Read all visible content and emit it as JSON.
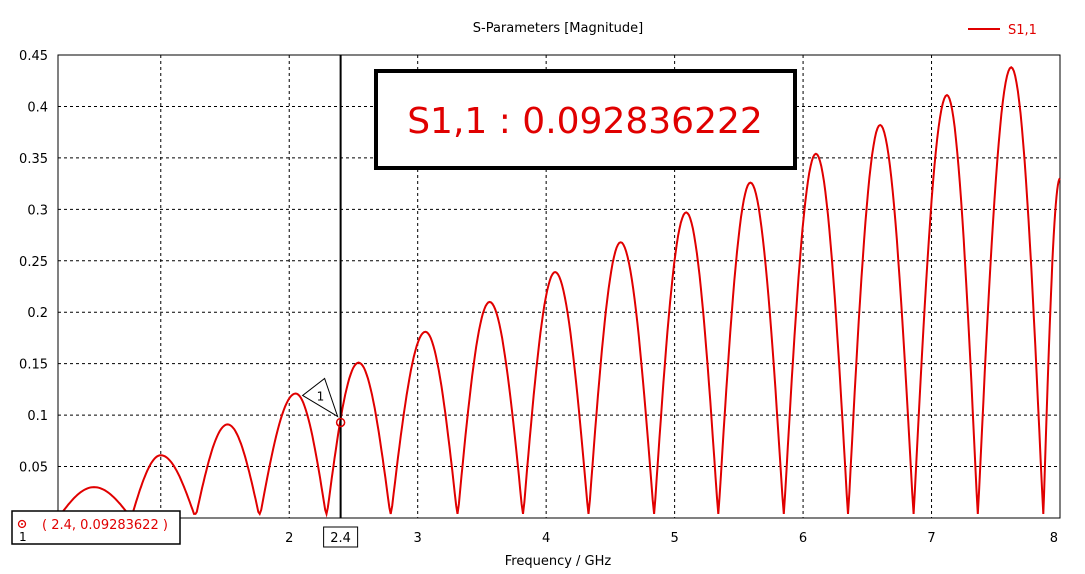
{
  "chart_data": {
    "type": "line",
    "title": "S-Parameters [Magnitude]",
    "xlabel": "Frequency / GHz",
    "ylabel": "",
    "xlim": [
      0.2,
      8
    ],
    "ylim": [
      0,
      0.45
    ],
    "x_ticks": [
      1,
      2,
      3,
      4,
      5,
      6,
      7,
      8
    ],
    "y_ticks": [
      0.05,
      0.1,
      0.15,
      0.2,
      0.25,
      0.3,
      0.35,
      0.4,
      0.45
    ],
    "y_tick_labels": [
      "0.05",
      "0.1",
      "0.15",
      "0.2",
      "0.25",
      "0.3",
      "0.35",
      "0.4",
      "0.45"
    ],
    "grid": true,
    "legend_position": "top-right",
    "series": [
      {
        "name": "S1,1",
        "color": "#e00000",
        "x": [
          0.2,
          0.48,
          0.77,
          1.0,
          1.27,
          1.52,
          1.77,
          2.05,
          2.29,
          2.54,
          2.79,
          3.06,
          3.31,
          3.56,
          3.82,
          4.07,
          4.33,
          4.58,
          4.84,
          5.09,
          5.34,
          5.59,
          5.85,
          6.1,
          6.35,
          6.6,
          6.86,
          7.12,
          7.36,
          7.62,
          7.87,
          8.0
        ],
        "y": [
          0.0,
          0.03,
          0.0,
          0.061,
          0.0,
          0.091,
          0.0,
          0.121,
          0.0,
          0.151,
          0.0,
          0.181,
          0.0,
          0.21,
          0.0,
          0.239,
          0.0,
          0.268,
          0.0,
          0.297,
          0.0,
          0.326,
          0.0,
          0.354,
          0.0,
          0.382,
          0.0,
          0.411,
          0.0,
          0.438,
          0.0,
          0.33
        ]
      }
    ]
  },
  "marker": {
    "x": 2.4,
    "y": 0.09283622,
    "id_label": "1",
    "readout": "( 2.4, 0.09283622 )",
    "readout_index": "1",
    "axis_label": "2.4",
    "annotation": "S1,1 : 0.092836222"
  }
}
